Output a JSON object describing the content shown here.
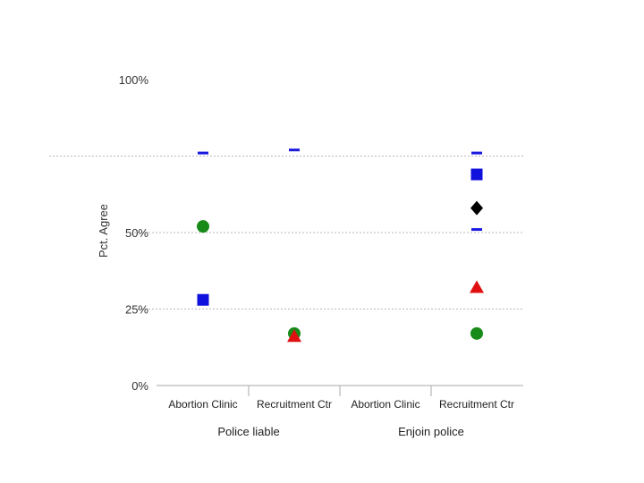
{
  "chart_data": {
    "type": "scatter",
    "ylabel": "Pct. Agree",
    "ylim": [
      0,
      100
    ],
    "yticks": [
      "0%",
      "25%",
      "50%",
      "100%"
    ],
    "ytick_values": [
      0,
      25,
      50,
      100
    ],
    "grid": "horizontal dotted",
    "categories": [
      "Abortion Clinic",
      "Recruitment Ctr",
      "Abortion Clinic",
      "Recruitment Ctr"
    ],
    "groups": [
      {
        "label": "Police liable",
        "categories": [
          0,
          1
        ]
      },
      {
        "label": "Enjoin police",
        "categories": [
          2,
          3
        ]
      }
    ],
    "series": [
      {
        "marker": "dash",
        "color": "#1a1ae0",
        "points": [
          {
            "cat": 0,
            "y": 76
          },
          {
            "cat": 1,
            "y": 77
          },
          {
            "cat": 3,
            "y": 76
          },
          {
            "cat": 3,
            "y": 51
          }
        ]
      },
      {
        "marker": "square",
        "color": "#1111dd",
        "points": [
          {
            "cat": 0,
            "y": 28
          },
          {
            "cat": 3,
            "y": 69
          }
        ]
      },
      {
        "marker": "circle",
        "color": "#188a18",
        "points": [
          {
            "cat": 0,
            "y": 52
          },
          {
            "cat": 1,
            "y": 17
          },
          {
            "cat": 3,
            "y": 17
          }
        ]
      },
      {
        "marker": "triangle",
        "color": "#e01010",
        "points": [
          {
            "cat": 1,
            "y": 16
          },
          {
            "cat": 3,
            "y": 32
          }
        ]
      },
      {
        "marker": "diamond",
        "color": "#000000",
        "points": [
          {
            "cat": 3,
            "y": 58
          }
        ]
      }
    ]
  }
}
